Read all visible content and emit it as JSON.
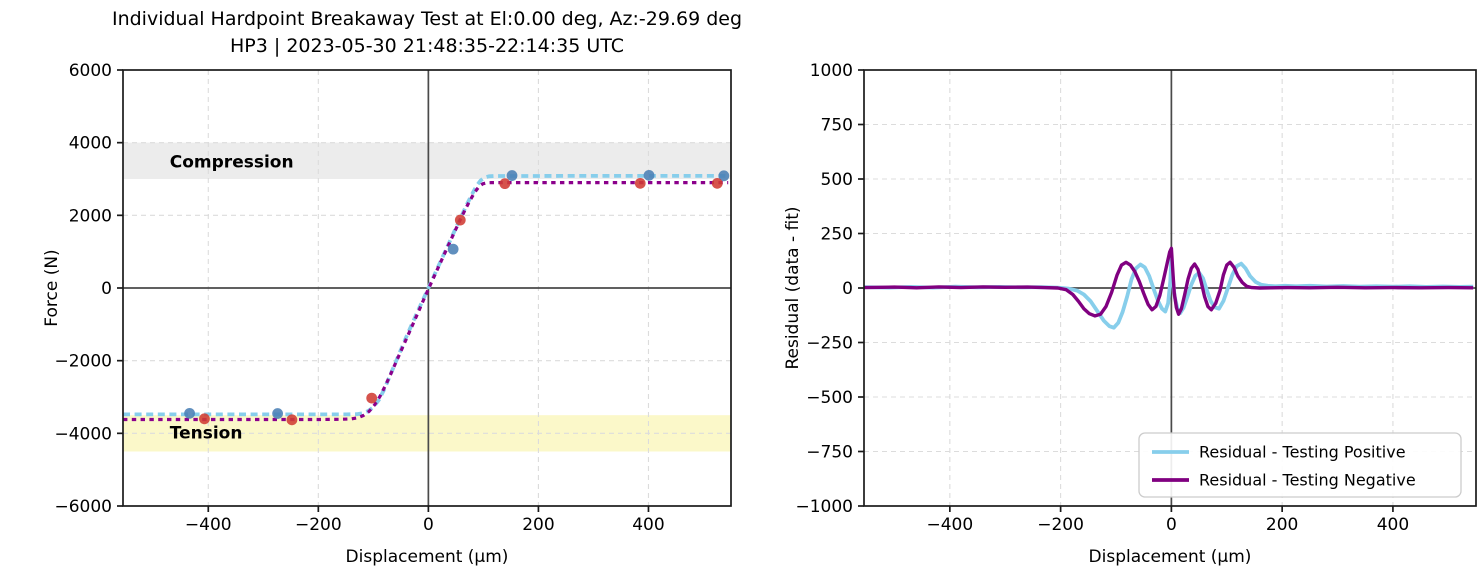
{
  "figure": {
    "title_line1": "Individual Hardpoint Breakaway Test at El:0.00 deg, Az:-29.69 deg",
    "title_line2": "HP3 | 2023-05-30 21:48:35-22:14:35 UTC"
  },
  "chart_data": [
    {
      "id": "force-vs-displacement",
      "type": "line",
      "xlabel": "Displacement (µm)",
      "ylabel": "Force (N)",
      "xlim": [
        -555,
        550
      ],
      "ylim": [
        -6000,
        6000
      ],
      "grid": true,
      "zero_lines": true,
      "xticks": [
        {
          "value": -400,
          "label": "−400"
        },
        {
          "value": -200,
          "label": "−200"
        },
        {
          "value": 0,
          "label": "0"
        },
        {
          "value": 200,
          "label": "200"
        },
        {
          "value": 400,
          "label": "400"
        }
      ],
      "yticks": [
        {
          "value": 6000,
          "label": "6000"
        },
        {
          "value": 4000,
          "label": "4000"
        },
        {
          "value": 2000,
          "label": "2000"
        },
        {
          "value": 0,
          "label": "0"
        },
        {
          "value": -2000,
          "label": "−2000"
        },
        {
          "value": -4000,
          "label": "−4000"
        },
        {
          "value": -6000,
          "label": "−6000"
        }
      ],
      "bands": [
        {
          "name": "compression",
          "label": "Compression",
          "y_from": 3000,
          "y_to": 4000,
          "color": "#ececec",
          "label_x": -470,
          "label_y": 3460
        },
        {
          "name": "tension",
          "label": "Tension",
          "y_from": -4500,
          "y_to": -3500,
          "color": "#fbf8c9",
          "label_x": -470,
          "label_y": -4000
        }
      ],
      "series": [
        {
          "name": "fit-testing-positive",
          "style": "dashed",
          "color": "#87ceeb",
          "width": 3.8,
          "dash": "7 4.6",
          "points": [
            [
              -555,
              -3480
            ],
            [
              -400,
              -3480
            ],
            [
              -300,
              -3480
            ],
            [
              -200,
              -3480
            ],
            [
              -150,
              -3480
            ],
            [
              -130,
              -3473
            ],
            [
              -120,
              -3450
            ],
            [
              -110,
              -3390
            ],
            [
              -100,
              -3280
            ],
            [
              -90,
              -3080
            ],
            [
              -80,
              -2780
            ],
            [
              -70,
              -2420
            ],
            [
              -60,
              -2060
            ],
            [
              -50,
              -1700
            ],
            [
              -40,
              -1340
            ],
            [
              -30,
              -1000
            ],
            [
              -20,
              -660
            ],
            [
              -10,
              -330
            ],
            [
              0,
              0
            ],
            [
              10,
              330
            ],
            [
              20,
              660
            ],
            [
              30,
              990
            ],
            [
              40,
              1320
            ],
            [
              50,
              1650
            ],
            [
              60,
              1980
            ],
            [
              70,
              2300
            ],
            [
              80,
              2600
            ],
            [
              88,
              2820
            ],
            [
              95,
              2960
            ],
            [
              102,
              3040
            ],
            [
              110,
              3075
            ],
            [
              120,
              3082
            ],
            [
              140,
              3082
            ],
            [
              180,
              3082
            ],
            [
              250,
              3085
            ],
            [
              350,
              3085
            ],
            [
              450,
              3085
            ],
            [
              545,
              3085
            ]
          ]
        },
        {
          "name": "fit-testing-negative",
          "style": "dashed",
          "color": "#8b008b",
          "width": 3.2,
          "dash": "4.4 4.4",
          "points": [
            [
              -555,
              -3620
            ],
            [
              -400,
              -3620
            ],
            [
              -300,
              -3620
            ],
            [
              -250,
              -3620
            ],
            [
              -200,
              -3618
            ],
            [
              -160,
              -3614
            ],
            [
              -140,
              -3602
            ],
            [
              -128,
              -3572
            ],
            [
              -118,
              -3508
            ],
            [
              -108,
              -3398
            ],
            [
              -98,
              -3220
            ],
            [
              -88,
              -2980
            ],
            [
              -78,
              -2680
            ],
            [
              -68,
              -2350
            ],
            [
              -58,
              -2010
            ],
            [
              -48,
              -1670
            ],
            [
              -38,
              -1330
            ],
            [
              -28,
              -990
            ],
            [
              -18,
              -650
            ],
            [
              -8,
              -300
            ],
            [
              0,
              -30
            ],
            [
              8,
              240
            ],
            [
              18,
              570
            ],
            [
              28,
              900
            ],
            [
              38,
              1230
            ],
            [
              48,
              1560
            ],
            [
              58,
              1880
            ],
            [
              68,
              2190
            ],
            [
              76,
              2420
            ],
            [
              84,
              2630
            ],
            [
              92,
              2790
            ],
            [
              99,
              2868
            ],
            [
              106,
              2896
            ],
            [
              115,
              2900
            ],
            [
              140,
              2900
            ],
            [
              200,
              2900
            ],
            [
              300,
              2900
            ],
            [
              400,
              2900
            ],
            [
              545,
              2900
            ]
          ]
        },
        {
          "name": "measured-testing-positive",
          "style": "scatter",
          "color": "#4a7fb5",
          "size": 5.4,
          "points": [
            [
              -434,
              -3450
            ],
            [
              -274,
              -3455
            ],
            [
              45,
              1070
            ],
            [
              152,
              3095
            ],
            [
              401,
              3100
            ],
            [
              537,
              3088
            ]
          ]
        },
        {
          "name": "measured-testing-negative",
          "style": "scatter",
          "color": "#d03b33",
          "size": 5.4,
          "points": [
            [
              -407,
              -3600
            ],
            [
              -248,
              -3628
            ],
            [
              -103,
              -3030
            ],
            [
              58,
              1870
            ],
            [
              139,
              2872
            ],
            [
              385,
              2880
            ],
            [
              525,
              2880
            ]
          ]
        }
      ]
    },
    {
      "id": "residual-vs-displacement",
      "type": "line",
      "xlabel": "Displacement (µm)",
      "ylabel": "Residual (data - fit)",
      "xlim": [
        -555,
        550
      ],
      "ylim": [
        -1000,
        1000
      ],
      "grid": true,
      "zero_lines": true,
      "xticks": [
        {
          "value": -400,
          "label": "−400"
        },
        {
          "value": -200,
          "label": "−200"
        },
        {
          "value": 0,
          "label": "0"
        },
        {
          "value": 200,
          "label": "200"
        },
        {
          "value": 400,
          "label": "400"
        }
      ],
      "yticks": [
        {
          "value": 1000,
          "label": "1000"
        },
        {
          "value": 750,
          "label": "750"
        },
        {
          "value": 500,
          "label": "500"
        },
        {
          "value": 250,
          "label": "250"
        },
        {
          "value": 0,
          "label": "0"
        },
        {
          "value": -250,
          "label": "−250"
        },
        {
          "value": -500,
          "label": "−500"
        },
        {
          "value": -750,
          "label": "−750"
        },
        {
          "value": -1000,
          "label": "−1000"
        }
      ],
      "bands": [],
      "series": [
        {
          "name": "residual-testing-positive",
          "style": "solid",
          "color": "#87ceeb",
          "width": 3.8,
          "points": [
            [
              -555,
              4
            ],
            [
              -510,
              2
            ],
            [
              -470,
              5
            ],
            [
              -430,
              2
            ],
            [
              -390,
              6
            ],
            [
              -350,
              3
            ],
            [
              -310,
              5
            ],
            [
              -270,
              3
            ],
            [
              -235,
              4
            ],
            [
              -205,
              2
            ],
            [
              -185,
              -3
            ],
            [
              -170,
              -12
            ],
            [
              -158,
              -30
            ],
            [
              -146,
              -60
            ],
            [
              -134,
              -105
            ],
            [
              -122,
              -150
            ],
            [
              -112,
              -175
            ],
            [
              -104,
              -182
            ],
            [
              -96,
              -160
            ],
            [
              -88,
              -110
            ],
            [
              -80,
              -40
            ],
            [
              -72,
              40
            ],
            [
              -64,
              90
            ],
            [
              -56,
              108
            ],
            [
              -48,
              95
            ],
            [
              -40,
              55
            ],
            [
              -32,
              -5
            ],
            [
              -24,
              -60
            ],
            [
              -17,
              -95
            ],
            [
              -11,
              -108
            ],
            [
              -6,
              -70
            ],
            [
              -2,
              30
            ],
            [
              0,
              150
            ],
            [
              2,
              60
            ],
            [
              6,
              -40
            ],
            [
              11,
              -95
            ],
            [
              16,
              -115
            ],
            [
              22,
              -90
            ],
            [
              29,
              -40
            ],
            [
              36,
              15
            ],
            [
              43,
              55
            ],
            [
              50,
              70
            ],
            [
              57,
              45
            ],
            [
              64,
              -10
            ],
            [
              71,
              -60
            ],
            [
              78,
              -88
            ],
            [
              86,
              -95
            ],
            [
              94,
              -60
            ],
            [
              102,
              0
            ],
            [
              110,
              60
            ],
            [
              118,
              100
            ],
            [
              126,
              112
            ],
            [
              134,
              90
            ],
            [
              142,
              55
            ],
            [
              152,
              28
            ],
            [
              162,
              15
            ],
            [
              174,
              10
            ],
            [
              188,
              8
            ],
            [
              205,
              10
            ],
            [
              225,
              8
            ],
            [
              250,
              10
            ],
            [
              280,
              7
            ],
            [
              310,
              9
            ],
            [
              340,
              6
            ],
            [
              370,
              8
            ],
            [
              400,
              6
            ],
            [
              430,
              8
            ],
            [
              460,
              5
            ],
            [
              490,
              7
            ],
            [
              520,
              5
            ],
            [
              545,
              6
            ]
          ]
        },
        {
          "name": "residual-testing-negative",
          "style": "solid",
          "color": "#800080",
          "width": 3.4,
          "points": [
            [
              -555,
              2
            ],
            [
              -500,
              4
            ],
            [
              -460,
              1
            ],
            [
              -420,
              5
            ],
            [
              -380,
              2
            ],
            [
              -340,
              5
            ],
            [
              -300,
              3
            ],
            [
              -260,
              4
            ],
            [
              -230,
              2
            ],
            [
              -205,
              0
            ],
            [
              -190,
              -8
            ],
            [
              -178,
              -30
            ],
            [
              -168,
              -60
            ],
            [
              -158,
              -95
            ],
            [
              -148,
              -118
            ],
            [
              -138,
              -128
            ],
            [
              -128,
              -120
            ],
            [
              -118,
              -85
            ],
            [
              -108,
              -20
            ],
            [
              -98,
              60
            ],
            [
              -90,
              105
            ],
            [
              -82,
              118
            ],
            [
              -74,
              105
            ],
            [
              -66,
              75
            ],
            [
              -58,
              30
            ],
            [
              -50,
              -25
            ],
            [
              -42,
              -75
            ],
            [
              -35,
              -100
            ],
            [
              -28,
              -85
            ],
            [
              -21,
              -35
            ],
            [
              -14,
              40
            ],
            [
              -8,
              110
            ],
            [
              -3,
              165
            ],
            [
              0,
              182
            ],
            [
              2,
              100
            ],
            [
              5,
              -20
            ],
            [
              9,
              -90
            ],
            [
              13,
              -120
            ],
            [
              18,
              -95
            ],
            [
              24,
              -30
            ],
            [
              30,
              40
            ],
            [
              36,
              90
            ],
            [
              42,
              110
            ],
            [
              48,
              85
            ],
            [
              54,
              25
            ],
            [
              60,
              -40
            ],
            [
              66,
              -85
            ],
            [
              72,
              -100
            ],
            [
              80,
              -70
            ],
            [
              88,
              -10
            ],
            [
              94,
              60
            ],
            [
              100,
              105
            ],
            [
              106,
              118
            ],
            [
              113,
              95
            ],
            [
              120,
              55
            ],
            [
              128,
              25
            ],
            [
              136,
              8
            ],
            [
              145,
              2
            ],
            [
              160,
              0
            ],
            [
              180,
              1
            ],
            [
              210,
              2
            ],
            [
              250,
              1
            ],
            [
              300,
              3
            ],
            [
              350,
              1
            ],
            [
              400,
              2
            ],
            [
              450,
              1
            ],
            [
              500,
              2
            ],
            [
              545,
              1
            ]
          ]
        }
      ],
      "legend": {
        "position": "lower right",
        "entries": [
          {
            "label": "Residual - Testing Positive",
            "color": "#87ceeb"
          },
          {
            "label": "Residual - Testing Negative",
            "color": "#800080"
          }
        ]
      }
    }
  ]
}
